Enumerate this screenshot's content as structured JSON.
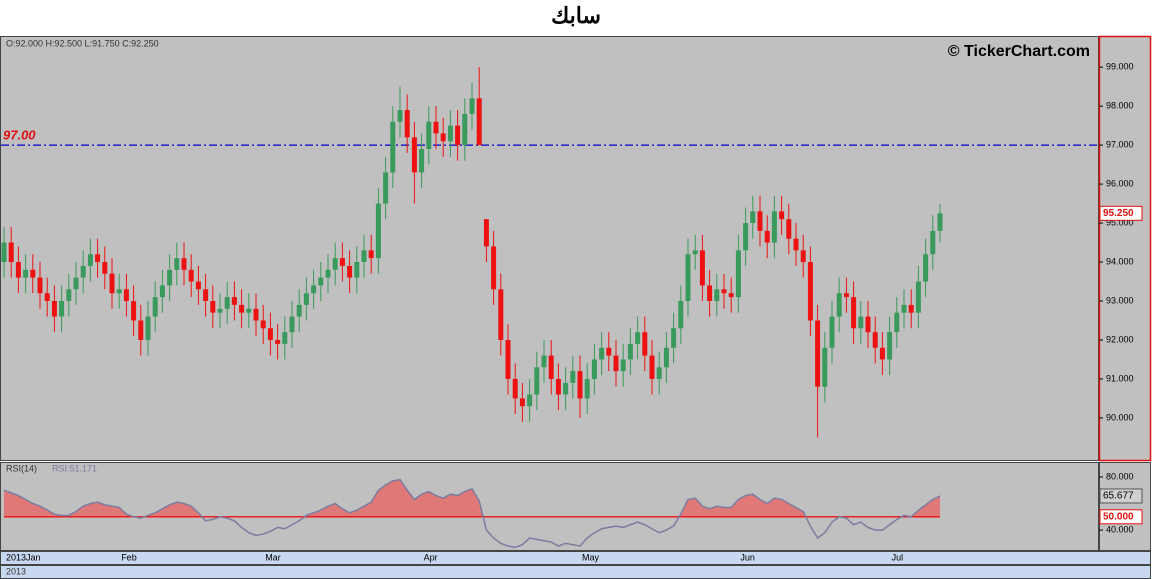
{
  "chart_data": {
    "type": "candlestick",
    "title": "سابك",
    "watermark": "© TickerChart.com",
    "ohlc_header": "O:92.000  H:92.500  L:91.750  C:92.250",
    "categories": [
      "2013Jan",
      null,
      null,
      null,
      null,
      null,
      null,
      null,
      null,
      null,
      null,
      null,
      null,
      null,
      null,
      null,
      "Feb",
      null,
      null,
      null,
      null,
      null,
      null,
      null,
      null,
      null,
      null,
      null,
      null,
      null,
      null,
      null,
      null,
      null,
      null,
      null,
      "Mar",
      null,
      null,
      null,
      null,
      null,
      null,
      null,
      null,
      null,
      null,
      null,
      null,
      null,
      null,
      null,
      null,
      null,
      null,
      null,
      null,
      null,
      "Apr",
      null,
      null,
      null,
      null,
      null,
      null,
      null,
      null,
      null,
      null,
      null,
      null,
      null,
      null,
      null,
      null,
      null,
      null,
      null,
      null,
      null,
      "May",
      null,
      null,
      null,
      null,
      null,
      null,
      null,
      null,
      null,
      null,
      null,
      null,
      null,
      null,
      null,
      null,
      null,
      null,
      null,
      null,
      null,
      "Jun",
      null,
      null,
      null,
      null,
      null,
      null,
      null,
      null,
      null,
      null,
      null,
      null,
      null,
      null,
      null,
      null,
      null,
      null,
      null,
      null,
      "Jul",
      null,
      null,
      null,
      null,
      null,
      null,
      null
    ],
    "year_label": "2013",
    "open": [
      94.0,
      94.5,
      94.0,
      93.6,
      93.8,
      93.6,
      93.2,
      93.0,
      92.6,
      93.0,
      93.3,
      93.6,
      93.9,
      94.2,
      94.0,
      93.7,
      93.2,
      93.3,
      93.0,
      92.5,
      92.0,
      92.6,
      93.1,
      93.4,
      93.8,
      94.1,
      93.8,
      93.5,
      93.3,
      93.0,
      92.7,
      92.8,
      93.1,
      92.9,
      92.7,
      92.8,
      92.5,
      92.3,
      92.0,
      91.9,
      92.2,
      92.6,
      92.9,
      93.2,
      93.4,
      93.6,
      93.8,
      94.1,
      93.9,
      93.6,
      94.0,
      94.3,
      94.1,
      95.5,
      96.3,
      97.6,
      97.9,
      97.2,
      96.3,
      96.9,
      97.6,
      97.3,
      97.1,
      97.5,
      97.0,
      97.8,
      98.2,
      95.1,
      94.4,
      93.3,
      92.0,
      91.0,
      90.5,
      90.3,
      90.6,
      91.3,
      91.6,
      91.0,
      90.6,
      90.9,
      91.2,
      90.5,
      91.0,
      91.5,
      91.8,
      91.6,
      91.2,
      91.5,
      91.9,
      92.2,
      91.6,
      91.0,
      91.3,
      91.8,
      92.3,
      93.0,
      94.2,
      94.3,
      93.4,
      93.0,
      93.3,
      93.2,
      93.1,
      94.3,
      95.0,
      95.3,
      94.8,
      94.5,
      95.3,
      95.1,
      94.6,
      94.3,
      94.0,
      92.5,
      90.8,
      91.8,
      92.6,
      93.2,
      93.1,
      92.3,
      92.6,
      92.2,
      91.8,
      91.5,
      92.2,
      92.7,
      92.9,
      92.7,
      93.5,
      94.2,
      94.8
    ],
    "high": [
      94.9,
      94.9,
      94.4,
      94.2,
      94.2,
      94.0,
      93.6,
      93.4,
      93.4,
      93.7,
      94.0,
      94.3,
      94.6,
      94.6,
      94.4,
      94.1,
      93.7,
      93.7,
      93.4,
      92.9,
      93.0,
      93.5,
      93.8,
      94.2,
      94.5,
      94.5,
      94.2,
      93.9,
      93.7,
      93.4,
      93.2,
      93.5,
      93.5,
      93.3,
      93.2,
      93.2,
      92.9,
      92.7,
      92.4,
      92.6,
      93.0,
      93.3,
      93.6,
      93.8,
      94.0,
      94.2,
      94.5,
      94.5,
      94.3,
      94.4,
      94.7,
      94.7,
      95.9,
      96.7,
      98.0,
      98.5,
      98.3,
      97.6,
      97.3,
      98.0,
      98.0,
      97.7,
      97.9,
      97.9,
      98.2,
      98.6,
      99.0,
      95.1,
      94.8,
      93.7,
      92.4,
      91.4,
      90.9,
      91.0,
      91.7,
      92.0,
      92.0,
      91.4,
      91.3,
      91.6,
      91.6,
      91.4,
      91.9,
      92.2,
      92.2,
      92.0,
      91.9,
      92.3,
      92.6,
      92.6,
      92.0,
      91.7,
      92.2,
      92.7,
      93.4,
      94.6,
      94.7,
      94.7,
      93.8,
      93.7,
      93.7,
      93.6,
      94.7,
      95.4,
      95.7,
      95.7,
      95.2,
      95.7,
      95.7,
      95.5,
      95.0,
      94.7,
      94.4,
      92.9,
      92.2,
      93.0,
      93.6,
      93.6,
      93.5,
      93.0,
      93.0,
      92.6,
      92.2,
      92.6,
      93.1,
      93.3,
      93.3,
      93.9,
      94.6,
      95.2,
      95.5
    ],
    "low": [
      93.6,
      93.6,
      93.2,
      93.2,
      93.2,
      92.8,
      92.6,
      92.2,
      92.2,
      92.6,
      92.9,
      93.2,
      93.5,
      93.6,
      93.3,
      92.8,
      92.8,
      92.6,
      92.1,
      91.6,
      91.6,
      92.2,
      92.7,
      93.0,
      93.4,
      93.4,
      93.1,
      92.9,
      92.6,
      92.3,
      92.3,
      92.4,
      92.5,
      92.3,
      92.3,
      92.1,
      91.9,
      91.6,
      91.5,
      91.5,
      91.8,
      92.2,
      92.5,
      92.8,
      93.0,
      93.2,
      93.4,
      93.5,
      93.2,
      93.2,
      93.6,
      93.7,
      93.7,
      95.1,
      95.9,
      97.2,
      96.8,
      95.5,
      95.9,
      96.5,
      96.9,
      96.7,
      96.7,
      96.6,
      96.6,
      97.4,
      97.0,
      94.0,
      92.9,
      91.6,
      90.6,
      90.1,
      89.9,
      89.9,
      90.2,
      90.9,
      90.6,
      90.2,
      90.2,
      90.5,
      90.0,
      90.1,
      90.6,
      91.1,
      91.2,
      90.8,
      90.8,
      91.1,
      91.5,
      91.2,
      90.6,
      90.6,
      90.9,
      91.4,
      91.9,
      92.6,
      93.8,
      93.0,
      92.6,
      92.6,
      92.8,
      92.7,
      92.7,
      93.9,
      94.6,
      94.4,
      94.1,
      94.1,
      94.7,
      94.2,
      93.9,
      93.6,
      92.1,
      89.5,
      90.4,
      91.4,
      92.2,
      92.7,
      91.9,
      91.9,
      91.8,
      91.4,
      91.1,
      91.1,
      91.8,
      92.3,
      92.3,
      92.3,
      93.1,
      93.8,
      94.5
    ],
    "close": [
      94.5,
      94.0,
      93.6,
      93.8,
      93.6,
      93.2,
      93.0,
      92.6,
      93.0,
      93.3,
      93.6,
      93.9,
      94.2,
      94.0,
      93.7,
      93.2,
      93.3,
      93.0,
      92.5,
      92.0,
      92.6,
      93.1,
      93.4,
      93.8,
      94.1,
      93.8,
      93.5,
      93.3,
      93.0,
      92.7,
      92.8,
      93.1,
      92.9,
      92.7,
      92.8,
      92.5,
      92.3,
      92.0,
      91.9,
      92.2,
      92.6,
      92.9,
      93.2,
      93.4,
      93.6,
      93.8,
      94.1,
      93.9,
      93.6,
      94.0,
      94.3,
      94.1,
      95.5,
      96.3,
      97.6,
      97.9,
      97.2,
      96.3,
      96.9,
      97.6,
      97.3,
      97.1,
      97.5,
      97.0,
      97.8,
      98.2,
      97.0,
      94.4,
      93.3,
      92.0,
      91.0,
      90.5,
      90.3,
      90.6,
      91.3,
      91.6,
      91.0,
      90.6,
      90.9,
      91.2,
      90.5,
      91.0,
      91.5,
      91.8,
      91.6,
      91.2,
      91.5,
      91.9,
      92.2,
      91.6,
      91.0,
      91.3,
      91.8,
      92.3,
      93.0,
      94.2,
      94.3,
      93.4,
      93.0,
      93.3,
      93.2,
      93.1,
      94.3,
      95.0,
      95.3,
      94.8,
      94.5,
      95.3,
      95.1,
      94.6,
      94.3,
      94.0,
      92.5,
      90.8,
      91.8,
      92.6,
      93.2,
      93.1,
      92.3,
      92.6,
      92.2,
      91.8,
      91.5,
      92.2,
      92.7,
      92.9,
      92.7,
      93.5,
      94.2,
      94.8,
      95.25
    ],
    "up_color": "#3a9a5c",
    "down_color": "#ee1111",
    "ylim": [
      88.92,
      99.8
    ],
    "yticks": [
      {
        "value": 90,
        "label": "90.000"
      },
      {
        "value": 91,
        "label": "91.000"
      },
      {
        "value": 92,
        "label": "92.000"
      },
      {
        "value": 93,
        "label": "93.000"
      },
      {
        "value": 94,
        "label": "94.000"
      },
      {
        "value": 95,
        "label": "95.000"
      },
      {
        "value": 96,
        "label": "96.000"
      },
      {
        "value": 97,
        "label": "97.000"
      },
      {
        "value": 98,
        "label": "98.000"
      },
      {
        "value": 99,
        "label": "99.000"
      }
    ],
    "hline": {
      "value": 97,
      "label": "97.00",
      "color": "#0000cc"
    },
    "last_price": {
      "value": 95.25,
      "label": "95.250"
    },
    "rsi": {
      "name": "RSI(14)",
      "reading": "RSI:51.171",
      "color": "#7c7ca0",
      "fill": "#e07878",
      "values": [
        70,
        68,
        66,
        63,
        60,
        58,
        55,
        52,
        51,
        51,
        54,
        58,
        60,
        61,
        59,
        58,
        57,
        52,
        50,
        49,
        51,
        53,
        56,
        59,
        61,
        60,
        58,
        53,
        47,
        48,
        50,
        49,
        47,
        42,
        38,
        36,
        37,
        39,
        42,
        41,
        44,
        47,
        51,
        53,
        55,
        58,
        60,
        56,
        53,
        55,
        58,
        61,
        70,
        74,
        77,
        78,
        70,
        63,
        67,
        69,
        66,
        64,
        67,
        66,
        69,
        71,
        62,
        40,
        34,
        30,
        28,
        27,
        29,
        34,
        33,
        32,
        31,
        28,
        30,
        29,
        28,
        34,
        38,
        41,
        42,
        43,
        42,
        44,
        46,
        44,
        41,
        38,
        40,
        43,
        52,
        63,
        64,
        58,
        56,
        58,
        57,
        57,
        63,
        66,
        67,
        63,
        60,
        64,
        63,
        60,
        57,
        54,
        43,
        34,
        38,
        46,
        50,
        49,
        44,
        46,
        42,
        40,
        40,
        44,
        48,
        51,
        50,
        55,
        59,
        63,
        65.677
      ],
      "level": {
        "value": 50,
        "label": "50.000",
        "color": "#ee1111"
      },
      "last": {
        "value": 65.677,
        "label": "65.677"
      },
      "ylim": [
        25,
        90.5
      ],
      "yticks": [
        {
          "value": 80,
          "label": "80.000"
        },
        {
          "value": 40,
          "label": "40.000"
        }
      ]
    }
  }
}
